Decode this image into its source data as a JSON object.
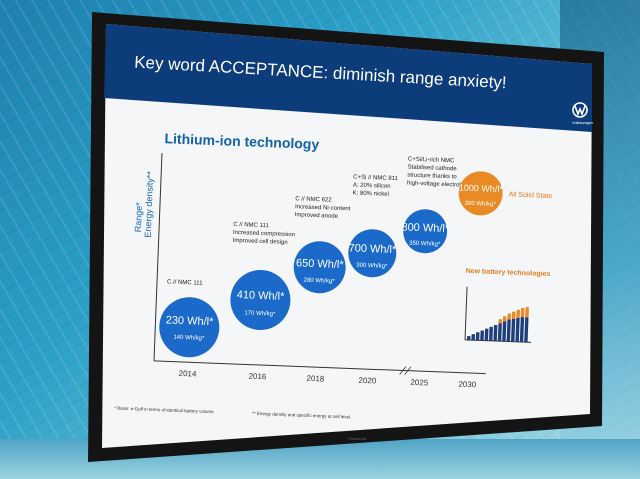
{
  "slide": {
    "title": "Key word ACCEPTANCE: diminish range anxiety!",
    "heading": "Lithium-ion technology",
    "y_label_1": "Range*",
    "y_label_2": "Energy density**",
    "steps": [
      {
        "year": "2014",
        "value": "230 Wh/l*",
        "sub": "140 Wh/kg*",
        "desc": [
          "C // NMC 111"
        ]
      },
      {
        "year": "2016",
        "value": "410 Wh/l*",
        "sub": "170 Wh/kg*",
        "desc": [
          "C // NMC 111",
          "Increased compression",
          "Improved cell design"
        ]
      },
      {
        "year": "2018",
        "value": "650 Wh/l*",
        "sub": "280 Wh/kg*",
        "desc": [
          "C // NMC 622",
          "Increased Ni-content",
          "Improved anode"
        ]
      },
      {
        "year": "2020",
        "value": "700 Wh/l*",
        "sub": "300 Wh/kg*",
        "desc": [
          "C+Si // NMC 811",
          "A: 20% silicon",
          "K: 80% nickel"
        ]
      },
      {
        "year": "2025",
        "value": "800 Wh/l*",
        "sub": "350 Wh/kg*",
        "desc": [
          "C+Si/Li-rich NMC",
          "Stabilised cathode",
          "structure thanks to",
          "high-voltage electrolyte"
        ]
      },
      {
        "year": "2030",
        "value": "1000 Wh/l*",
        "sub": "390 Wh/kg*",
        "desc": []
      }
    ],
    "solid_state": "All Solid State",
    "new_battery": "New battery technologies",
    "footnote_1": "* Basis: e-Golf in terms of identical battery volume",
    "footnote_2": "** Energy density and specific energy at cell level",
    "brand_label": "Volkswagen",
    "monitor_brand": "Panasonic"
  },
  "colors": {
    "title_bar": "#0d3c7b",
    "bubble_blue": "#1b6ac9",
    "bubble_orange": "#e98a24",
    "heading": "#1162a8"
  }
}
